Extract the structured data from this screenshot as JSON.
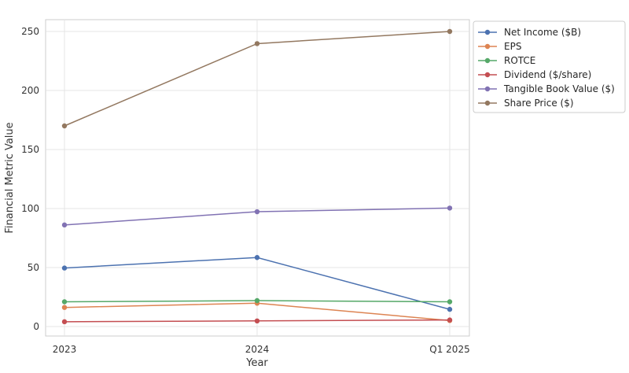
{
  "chart_data": {
    "type": "line",
    "categories": [
      "2023",
      "2024",
      "Q1 2025"
    ],
    "xlabel": "Year",
    "ylabel": "Financial Metric Value",
    "ylim": [
      -8,
      260
    ],
    "yticks": [
      0,
      50,
      100,
      150,
      200,
      250
    ],
    "grid": true,
    "legend_position": "outside-top-right",
    "series": [
      {
        "name": "Net Income ($B)",
        "color": "#4c72b0",
        "values": [
          49.6,
          58.5,
          14.6
        ]
      },
      {
        "name": "EPS",
        "color": "#dd8452",
        "values": [
          16.2,
          19.8,
          5.1
        ]
      },
      {
        "name": "ROTCE",
        "color": "#55a868",
        "values": [
          21,
          22,
          21
        ]
      },
      {
        "name": "Dividend ($/share)",
        "color": "#c44e52",
        "values": [
          4.1,
          4.8,
          5.6
        ]
      },
      {
        "name": "Tangible Book Value ($)",
        "color": "#8172b3",
        "values": [
          86.1,
          97.3,
          100.4
        ]
      },
      {
        "name": "Share Price ($)",
        "color": "#937860",
        "values": [
          170,
          239.7,
          250
        ]
      }
    ]
  }
}
